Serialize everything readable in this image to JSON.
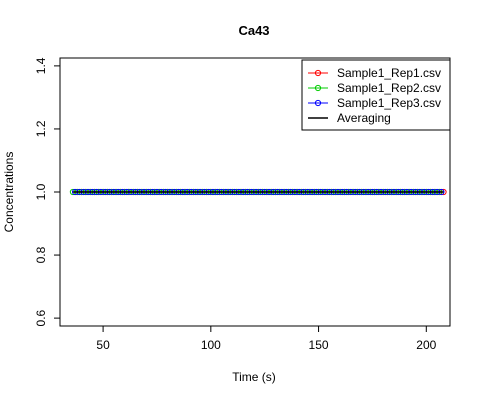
{
  "chart_data": {
    "type": "line",
    "title": "Ca43",
    "xlabel": "Time (s)",
    "ylabel": "Concentrations",
    "xlim": [
      30,
      211
    ],
    "ylim": [
      0.575,
      1.425
    ],
    "xticks": [
      50,
      100,
      150,
      200
    ],
    "yticks": [
      0.6,
      0.8,
      1.0,
      1.2,
      1.4
    ],
    "xtick_labels": [
      "50",
      "100",
      "150",
      "200"
    ],
    "ytick_labels": [
      "0.6",
      "0.8",
      "1.0",
      "1.2",
      "1.4"
    ],
    "grid": false,
    "legend_position": "top-right",
    "series": [
      {
        "name": "Sample1_Rep1.csv",
        "color": "#ff0000",
        "marker": "open-circle",
        "x_start": 38,
        "x_end": 208,
        "x_step": 2,
        "value": 1.0
      },
      {
        "name": "Sample1_Rep2.csv",
        "color": "#00cc00",
        "marker": "open-circle",
        "x_start": 36,
        "x_end": 206,
        "x_step": 2,
        "value": 1.0
      },
      {
        "name": "Sample1_Rep3.csv",
        "color": "#0000ff",
        "marker": "open-circle",
        "x_start": 37,
        "x_end": 207,
        "x_step": 2,
        "value": 1.0
      }
    ],
    "average": {
      "name": "Averaging",
      "color": "#000000",
      "x_start": 36,
      "x_end": 208,
      "value": 1.0
    }
  }
}
